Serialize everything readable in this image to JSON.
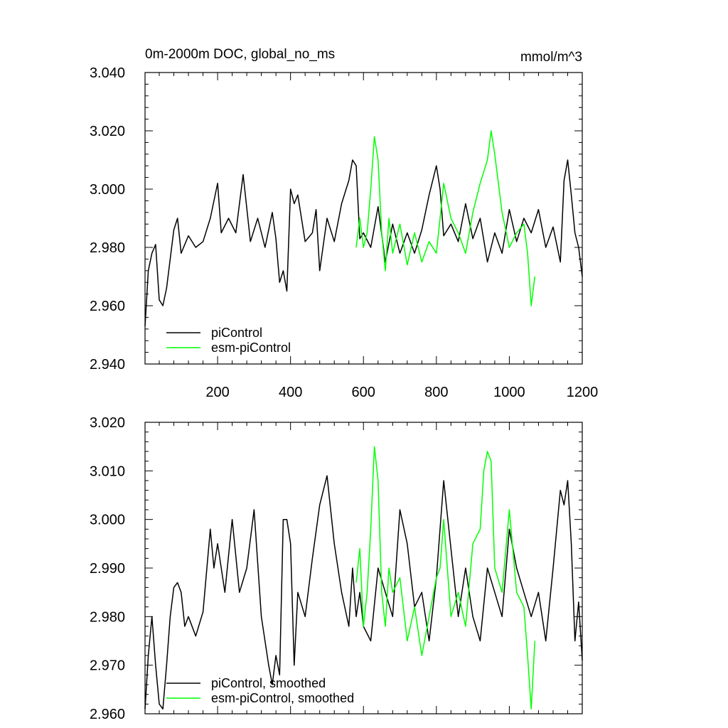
{
  "chart_data": [
    {
      "type": "line",
      "title": "0m-2000m DOC, global_no_ms",
      "units": "mmol/m^3",
      "xlabel": "",
      "ylabel": "",
      "xlim": [
        1,
        1200
      ],
      "ylim": [
        2.94,
        3.04
      ],
      "x_ticks": [
        200,
        400,
        600,
        800,
        1000,
        1200
      ],
      "y_ticks": [
        "2.940",
        "2.960",
        "2.980",
        "3.000",
        "3.020",
        "3.040"
      ],
      "grid": false,
      "legend_position": "bottom-left",
      "series": [
        {
          "name": "piControl",
          "color": "#000000",
          "x": [
            1,
            10,
            20,
            30,
            40,
            50,
            60,
            70,
            80,
            90,
            100,
            120,
            140,
            160,
            180,
            200,
            210,
            230,
            250,
            270,
            290,
            310,
            330,
            350,
            360,
            370,
            380,
            390,
            400,
            410,
            420,
            440,
            460,
            470,
            480,
            500,
            520,
            540,
            560,
            570,
            580,
            590,
            600,
            620,
            640,
            660,
            680,
            700,
            720,
            740,
            760,
            780,
            800,
            810,
            820,
            840,
            860,
            880,
            900,
            920,
            940,
            960,
            980,
            1000,
            1020,
            1040,
            1060,
            1080,
            1100,
            1120,
            1140,
            1150,
            1160,
            1170,
            1180,
            1190,
            1200
          ],
          "values": [
            2.953,
            2.972,
            2.978,
            2.981,
            2.962,
            2.96,
            2.966,
            2.976,
            2.986,
            2.99,
            2.978,
            2.984,
            2.98,
            2.982,
            2.99,
            3.002,
            2.985,
            2.99,
            2.985,
            3.005,
            2.982,
            2.99,
            2.98,
            2.992,
            2.983,
            2.968,
            2.972,
            2.965,
            3.0,
            2.995,
            2.998,
            2.982,
            2.985,
            2.993,
            2.972,
            2.99,
            2.982,
            2.995,
            3.003,
            3.01,
            3.008,
            2.983,
            2.985,
            2.98,
            2.994,
            2.975,
            2.988,
            2.978,
            2.985,
            2.978,
            2.986,
            2.998,
            3.008,
            3.0,
            2.984,
            2.988,
            2.982,
            2.995,
            2.983,
            2.99,
            2.975,
            2.985,
            2.978,
            2.993,
            2.982,
            2.99,
            2.985,
            2.993,
            2.98,
            2.987,
            2.975,
            3.003,
            3.01,
            2.998,
            2.985,
            2.98,
            2.97
          ]
        },
        {
          "name": "esm-piControl",
          "color": "#00ff00",
          "x": [
            580,
            590,
            600,
            610,
            620,
            630,
            640,
            650,
            660,
            670,
            680,
            700,
            720,
            740,
            760,
            780,
            800,
            810,
            820,
            840,
            860,
            880,
            900,
            920,
            940,
            950,
            960,
            980,
            1000,
            1020,
            1040,
            1050,
            1060,
            1070
          ],
          "values": [
            2.98,
            2.99,
            2.98,
            2.985,
            3.0,
            3.018,
            3.01,
            2.985,
            2.972,
            2.99,
            2.978,
            2.988,
            2.974,
            2.985,
            2.975,
            2.982,
            2.978,
            2.99,
            3.002,
            2.99,
            2.985,
            2.978,
            2.992,
            3.002,
            3.01,
            3.02,
            3.012,
            2.992,
            2.98,
            2.985,
            2.988,
            2.978,
            2.96,
            2.97
          ]
        }
      ]
    },
    {
      "type": "line",
      "title": "",
      "xlabel": "",
      "ylabel": "",
      "xlim": [
        1,
        1200
      ],
      "ylim": [
        2.96,
        3.02
      ],
      "y_ticks": [
        "2.960",
        "2.970",
        "2.980",
        "2.990",
        "3.000",
        "3.010",
        "3.020"
      ],
      "grid": false,
      "legend_position": "bottom-left",
      "series": [
        {
          "name": "piControl, smoothed",
          "color": "#000000",
          "x": [
            1,
            10,
            20,
            30,
            40,
            50,
            60,
            70,
            80,
            90,
            100,
            110,
            120,
            140,
            160,
            180,
            190,
            200,
            220,
            240,
            260,
            280,
            300,
            320,
            340,
            350,
            360,
            370,
            380,
            390,
            400,
            410,
            420,
            440,
            460,
            480,
            500,
            520,
            540,
            560,
            570,
            580,
            590,
            600,
            620,
            640,
            660,
            680,
            700,
            720,
            740,
            760,
            780,
            800,
            820,
            840,
            860,
            880,
            900,
            920,
            940,
            960,
            980,
            1000,
            1020,
            1040,
            1060,
            1080,
            1100,
            1120,
            1140,
            1150,
            1160,
            1170,
            1180,
            1190,
            1200
          ],
          "values": [
            2.961,
            2.972,
            2.98,
            2.97,
            2.962,
            2.961,
            2.97,
            2.98,
            2.986,
            2.987,
            2.985,
            2.978,
            2.98,
            2.976,
            2.981,
            2.998,
            2.99,
            2.995,
            2.985,
            3.0,
            2.985,
            2.99,
            3.002,
            2.98,
            2.97,
            2.966,
            2.972,
            2.968,
            3.0,
            3.0,
            2.995,
            2.97,
            2.985,
            2.98,
            2.992,
            3.003,
            3.009,
            2.995,
            2.985,
            2.978,
            2.99,
            2.98,
            2.985,
            2.978,
            2.975,
            2.99,
            2.985,
            2.98,
            3.002,
            2.995,
            2.982,
            2.985,
            2.975,
            2.988,
            3.008,
            2.994,
            2.98,
            2.99,
            2.98,
            2.975,
            2.99,
            2.985,
            2.98,
            2.998,
            2.99,
            2.985,
            2.98,
            2.985,
            2.975,
            2.99,
            3.006,
            3.003,
            3.008,
            2.995,
            2.975,
            2.983,
            2.971
          ]
        },
        {
          "name": "esm-piControl, smoothed",
          "color": "#00ff00",
          "x": [
            580,
            590,
            600,
            610,
            620,
            630,
            640,
            650,
            660,
            670,
            680,
            700,
            720,
            740,
            760,
            780,
            800,
            810,
            820,
            840,
            860,
            880,
            900,
            920,
            930,
            940,
            950,
            960,
            980,
            1000,
            1020,
            1040,
            1050,
            1060,
            1070
          ],
          "values": [
            2.987,
            2.994,
            2.978,
            2.985,
            2.998,
            3.015,
            3.008,
            2.985,
            2.978,
            2.99,
            2.985,
            2.988,
            2.975,
            2.982,
            2.972,
            2.98,
            2.988,
            2.99,
            3.0,
            2.98,
            2.985,
            2.978,
            2.995,
            2.998,
            3.01,
            3.014,
            3.012,
            2.99,
            2.985,
            3.002,
            2.985,
            2.982,
            2.972,
            2.961,
            2.975
          ]
        }
      ]
    }
  ]
}
